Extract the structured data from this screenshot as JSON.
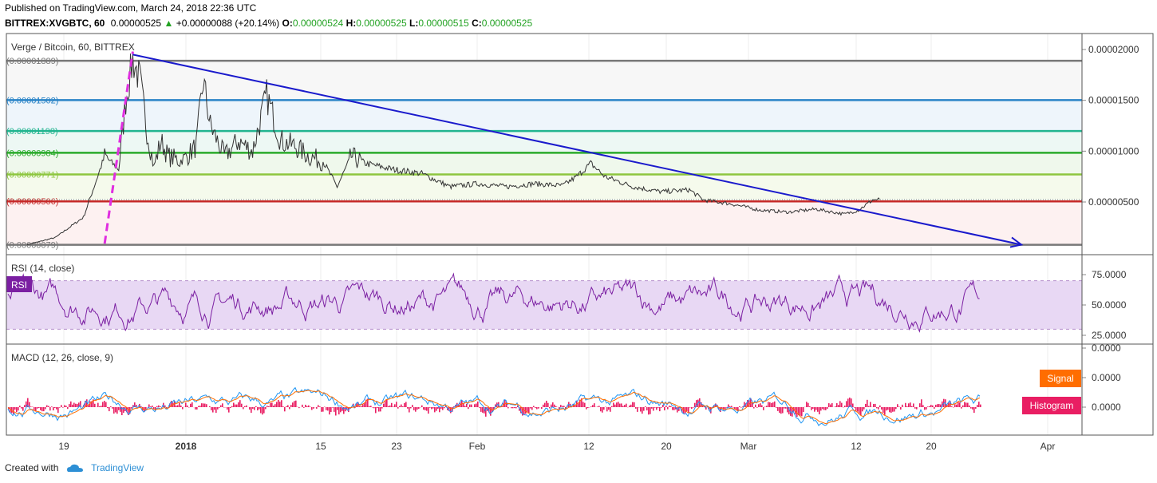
{
  "header": {
    "published": "Published on TradingView.com, March 24, 2018 22:36 UTC",
    "symbol": "BITTREX:XVGBTC, 60",
    "last": "0.00000525",
    "arrow": "▲",
    "change": "+0.00000088 (+20.14%)",
    "o_label": "O:",
    "o_value": "0.00000524",
    "h_label": "H:",
    "h_value": "0.00000525",
    "l_label": "L:",
    "l_value": "0.00000515",
    "c_label": "C:",
    "c_value": "0.00000525"
  },
  "footer": {
    "created_with": "Created with",
    "brand": "TradingView"
  },
  "colors": {
    "trendline": "#1a1acc",
    "dashed": "#e02ee0",
    "rsi": "#7b1fa2",
    "rsi_band": "#e8d8f4",
    "macd": "#2196f3",
    "signal": "#ff6d00",
    "histogram": "#e91e63"
  },
  "chart_data": [
    {
      "type": "line",
      "title": "Verge / Bitcoin, 60, BITTREX",
      "x_ticks": [
        "19",
        "2018",
        "15",
        "23",
        "Feb",
        "12",
        "20",
        "Mar",
        "12",
        "20",
        "Apr"
      ],
      "y_ticks": [
        "0.00002000",
        "0.00001500",
        "0.00001000",
        "0.00000500"
      ],
      "ylim": [
        5e-07,
        2.05e-05
      ],
      "last_price": "0.00000525",
      "levels": [
        {
          "label": "(0.00001889)",
          "value": 1.889e-05,
          "color": "#787878"
        },
        {
          "label": "(0.00001502)",
          "value": 1.502e-05,
          "color": "#2a84c7"
        },
        {
          "label": "(0.00001198)",
          "value": 1.198e-05,
          "color": "#21b58f"
        },
        {
          "label": "(0.00000984)",
          "value": 9.84e-06,
          "color": "#2aaa2a"
        },
        {
          "label": "(0.00000771)",
          "value": 7.71e-06,
          "color": "#8dc63f"
        },
        {
          "label": "(0.00000506)",
          "value": 5.06e-06,
          "color": "#c62828"
        },
        {
          "label": "(0.00000079)",
          "value": 7.9e-07,
          "color": "#787878"
        }
      ],
      "price_path": [
        [
          0,
          8e-07
        ],
        [
          4,
          1.5e-06
        ],
        [
          8,
          3.5e-06
        ],
        [
          10,
          7.5e-06
        ],
        [
          11,
          9.5e-06
        ],
        [
          13,
          8.2e-06
        ],
        [
          14,
          1.5e-05
        ],
        [
          15,
          1.9e-05
        ],
        [
          16,
          1.7e-05
        ],
        [
          17,
          1.2e-05
        ],
        [
          18,
          8.5e-06
        ],
        [
          19,
          1.1e-05
        ],
        [
          20,
          9.5e-06
        ],
        [
          22,
          9e-06
        ],
        [
          24,
          1.05e-05
        ],
        [
          25,
          1.7e-05
        ],
        [
          26,
          1.25e-05
        ],
        [
          28,
          9.5e-06
        ],
        [
          30,
          1.1e-05
        ],
        [
          32,
          1e-05
        ],
        [
          34,
          1.55e-05
        ],
        [
          36,
          1.1e-05
        ],
        [
          38,
          1.05e-05
        ],
        [
          40,
          9.5e-06
        ],
        [
          42,
          9e-06
        ],
        [
          44,
          6.5e-06
        ],
        [
          46,
          9.5e-06
        ],
        [
          48,
          8.8e-06
        ],
        [
          52,
          8.2e-06
        ],
        [
          56,
          7.8e-06
        ],
        [
          60,
          6.5e-06
        ],
        [
          64,
          6.8e-06
        ],
        [
          68,
          6.5e-06
        ],
        [
          72,
          6.8e-06
        ],
        [
          76,
          6.6e-06
        ],
        [
          78,
          7.5e-06
        ],
        [
          80,
          8.8e-06
        ],
        [
          82,
          7.5e-06
        ],
        [
          86,
          6.5e-06
        ],
        [
          90,
          6e-06
        ],
        [
          94,
          6.2e-06
        ],
        [
          96,
          5.2e-06
        ],
        [
          100,
          4.8e-06
        ],
        [
          104,
          4.2e-06
        ],
        [
          108,
          4e-06
        ],
        [
          112,
          4.3e-06
        ],
        [
          116,
          3.8e-06
        ],
        [
          118,
          4.2e-06
        ],
        [
          120,
          5.2e-06
        ],
        [
          121,
          5.25e-06
        ]
      ],
      "trendline": {
        "from": [
          15,
          1.95e-05
        ],
        "to": [
          140,
          8e-07
        ]
      },
      "dashed_line": {
        "from": [
          11,
          9e-07
        ],
        "to": [
          15,
          1.98e-05
        ]
      }
    },
    {
      "type": "line",
      "title": "RSI (14, close)",
      "badge": "RSI",
      "y_ticks": [
        "75.0000",
        "50.0000",
        "25.0000"
      ],
      "ylim": [
        15,
        90
      ],
      "band": [
        30,
        70
      ]
    },
    {
      "type": "line",
      "title": "MACD (12, 26, close, 9)",
      "y_ticks": [
        "0.0000",
        "0.0000",
        "0.0000"
      ],
      "legend": [
        {
          "name": "Signal",
          "color": "#ff6d00"
        },
        {
          "name": "Histogram",
          "color": "#e91e63"
        }
      ]
    }
  ]
}
